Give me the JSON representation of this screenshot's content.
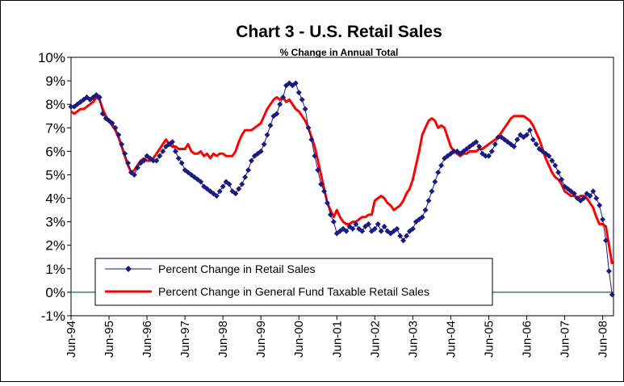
{
  "chart_data": {
    "type": "line",
    "title": "Chart 3 - U.S. Retail Sales",
    "subtitle": "% Change in Annual Total",
    "categories": [
      "Jun-94",
      null,
      null,
      null,
      null,
      null,
      null,
      null,
      null,
      null,
      null,
      null,
      "Jun-95",
      null,
      null,
      null,
      null,
      null,
      null,
      null,
      null,
      null,
      null,
      null,
      "Jun-96",
      null,
      null,
      null,
      null,
      null,
      null,
      null,
      null,
      null,
      null,
      null,
      "Jun-97",
      null,
      null,
      null,
      null,
      null,
      null,
      null,
      null,
      null,
      null,
      null,
      "Jun-98",
      null,
      null,
      null,
      null,
      null,
      null,
      null,
      null,
      null,
      null,
      null,
      "Jun-99",
      null,
      null,
      null,
      null,
      null,
      null,
      null,
      null,
      null,
      null,
      null,
      "Jun-00",
      null,
      null,
      null,
      null,
      null,
      null,
      null,
      null,
      null,
      null,
      null,
      "Jun-01",
      null,
      null,
      null,
      null,
      null,
      null,
      null,
      null,
      null,
      null,
      null,
      "Jun-02",
      null,
      null,
      null,
      null,
      null,
      null,
      null,
      null,
      null,
      null,
      null,
      "Jun-03",
      null,
      null,
      null,
      null,
      null,
      null,
      null,
      null,
      null,
      null,
      null,
      "Jun-04",
      null,
      null,
      null,
      null,
      null,
      null,
      null,
      null,
      null,
      null,
      null,
      "Jun-05",
      null,
      null,
      null,
      null,
      null,
      null,
      null,
      null,
      null,
      null,
      null,
      "Jun-06",
      null,
      null,
      null,
      null,
      null,
      null,
      null,
      null,
      null,
      null,
      null,
      "Jun-07",
      null,
      null,
      null,
      null,
      null,
      null,
      null,
      null,
      null,
      null,
      null,
      "Jun-08",
      null,
      null,
      null
    ],
    "series": [
      {
        "name": "Percent Change in Retail Sales",
        "color": "#1a1a80",
        "marker": "diamond",
        "values": [
          7.9,
          7.9,
          8.0,
          8.1,
          8.2,
          8.3,
          8.2,
          8.3,
          8.4,
          8.3,
          7.6,
          7.4,
          7.3,
          7.2,
          7.0,
          6.7,
          6.3,
          5.9,
          5.5,
          5.1,
          5.0,
          5.3,
          5.5,
          5.6,
          5.8,
          5.7,
          5.6,
          5.6,
          5.8,
          6.0,
          6.2,
          6.3,
          6.4,
          6.0,
          5.7,
          5.5,
          5.2,
          5.1,
          5.0,
          4.9,
          4.8,
          4.7,
          4.5,
          4.4,
          4.3,
          4.2,
          4.1,
          4.3,
          4.5,
          4.7,
          4.6,
          4.3,
          4.2,
          4.4,
          4.6,
          4.9,
          5.2,
          5.6,
          5.8,
          5.9,
          6.0,
          6.3,
          6.7,
          7.1,
          7.5,
          7.6,
          8.0,
          8.3,
          8.8,
          8.9,
          8.8,
          8.9,
          8.5,
          8.2,
          7.8,
          7.0,
          6.5,
          5.8,
          5.2,
          4.6,
          4.3,
          3.8,
          3.3,
          3.0,
          2.5,
          2.6,
          2.7,
          2.6,
          2.8,
          2.7,
          2.9,
          2.7,
          2.6,
          2.8,
          2.9,
          2.6,
          2.7,
          2.9,
          2.6,
          2.8,
          2.6,
          2.5,
          2.6,
          2.7,
          2.4,
          2.2,
          2.4,
          2.6,
          2.7,
          3.0,
          3.1,
          3.2,
          3.5,
          3.9,
          4.3,
          4.7,
          5.1,
          5.4,
          5.7,
          5.8,
          5.9,
          6.0,
          6.0,
          5.9,
          6.0,
          6.1,
          6.2,
          6.3,
          6.4,
          6.2,
          5.9,
          5.8,
          5.8,
          6.0,
          6.3,
          6.6,
          6.6,
          6.5,
          6.4,
          6.3,
          6.2,
          6.5,
          6.7,
          6.6,
          6.7,
          6.9,
          6.5,
          6.3,
          6.1,
          6.0,
          5.9,
          5.8,
          5.6,
          5.4,
          5.1,
          4.8,
          4.5,
          4.4,
          4.3,
          4.2,
          4.0,
          3.9,
          4.0,
          4.2,
          4.1,
          4.3,
          4.0,
          3.7,
          3.1,
          2.2,
          0.9,
          -0.1
        ]
      },
      {
        "name": "Percent Change in General Fund Taxable Retail Sales",
        "color": "#ff0000",
        "values": [
          7.7,
          7.6,
          7.7,
          7.8,
          7.8,
          7.9,
          8.0,
          8.1,
          8.3,
          8.2,
          7.8,
          7.5,
          7.3,
          7.1,
          6.9,
          6.6,
          6.2,
          5.8,
          5.4,
          5.1,
          5.2,
          5.4,
          5.6,
          5.7,
          5.6,
          5.6,
          5.7,
          5.9,
          6.1,
          6.3,
          6.5,
          6.3,
          6.2,
          6.2,
          6.1,
          6.1,
          6.1,
          6.3,
          6.0,
          5.9,
          5.9,
          6.0,
          5.8,
          5.9,
          5.7,
          5.9,
          5.8,
          5.9,
          5.9,
          5.8,
          5.8,
          5.8,
          6.0,
          6.4,
          6.7,
          6.9,
          6.9,
          6.9,
          7.0,
          7.1,
          7.2,
          7.5,
          7.8,
          8.0,
          8.2,
          8.3,
          8.2,
          8.3,
          8.1,
          8.2,
          8.0,
          7.8,
          7.7,
          7.5,
          7.3,
          7.0,
          6.6,
          6.2,
          5.6,
          5.0,
          4.4,
          3.8,
          3.5,
          3.2,
          3.5,
          3.2,
          3.0,
          2.9,
          2.9,
          3.0,
          3.0,
          3.1,
          3.2,
          3.2,
          3.3,
          3.3,
          3.9,
          4.0,
          4.1,
          4.0,
          3.8,
          3.7,
          3.5,
          3.6,
          3.7,
          3.9,
          4.2,
          4.4,
          4.8,
          5.4,
          6.0,
          6.7,
          7.0,
          7.3,
          7.4,
          7.3,
          7.0,
          7.1,
          7.0,
          6.6,
          6.2,
          6.0,
          5.9,
          5.8,
          5.9,
          5.9,
          6.0,
          6.0,
          6.0,
          6.1,
          6.1,
          6.2,
          6.3,
          6.4,
          6.5,
          6.6,
          6.8,
          7.0,
          7.2,
          7.4,
          7.5,
          7.5,
          7.5,
          7.5,
          7.4,
          7.3,
          7.1,
          6.8,
          6.5,
          6.1,
          5.7,
          5.4,
          5.1,
          4.9,
          4.8,
          4.6,
          4.3,
          4.2,
          4.1,
          4.1,
          4.0,
          4.1,
          4.1,
          4.0,
          3.8,
          3.6,
          3.2,
          2.9,
          2.9,
          2.8,
          2.0,
          1.2
        ]
      }
    ],
    "ylim": [
      -1,
      10
    ],
    "yticks": [
      {
        "value": -1,
        "label": "-1%"
      },
      {
        "value": 0,
        "label": "0%"
      },
      {
        "value": 1,
        "label": "1%"
      },
      {
        "value": 2,
        "label": "2%"
      },
      {
        "value": 3,
        "label": "3%"
      },
      {
        "value": 4,
        "label": "4%"
      },
      {
        "value": 5,
        "label": "5%"
      },
      {
        "value": 6,
        "label": "6%"
      },
      {
        "value": 7,
        "label": "7%"
      },
      {
        "value": 8,
        "label": "8%"
      },
      {
        "value": 9,
        "label": "9%"
      },
      {
        "value": 10,
        "label": "10%"
      }
    ],
    "grid": false,
    "zero_line_color": "#2e8b57",
    "legend": "lower left"
  }
}
